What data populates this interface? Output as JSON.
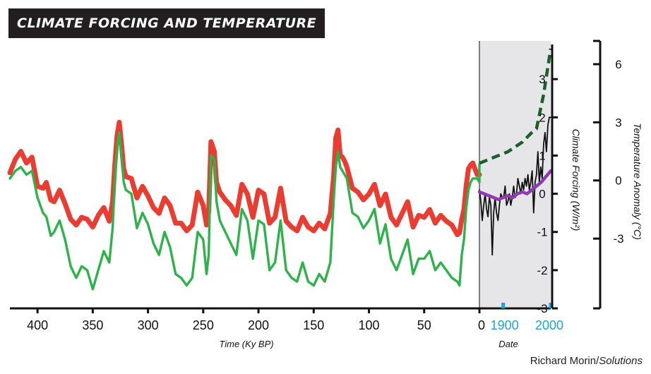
{
  "title": "CLIMATE FORCING AND TEMPERATURE",
  "credit": {
    "name": "Richard Morin/",
    "publication": "Solutions"
  },
  "colors": {
    "paleo_temperature": "#e8281c",
    "paleo_forcing": "#2db34a",
    "projection": "#1c5e2c",
    "instrumental_temperature": "#111111",
    "instrumental_forcing": "#8e3ab3",
    "date_ticks": "#1aa3e0",
    "modern_panel": "#e6e6e8"
  },
  "chart_data": [
    {
      "type": "line",
      "panel": "paleoclimate",
      "xlabel": "Time (Ky BP)",
      "xlim": [
        425,
        0
      ],
      "x_reversed": true,
      "x_ticks": [
        400,
        350,
        300,
        250,
        200,
        150,
        100,
        50,
        0
      ],
      "series": [
        {
          "kind": "temperature",
          "color_key": "paleo_temperature",
          "axis": "temperature",
          "x": [
            425,
            420,
            415,
            410,
            405,
            400,
            395,
            392,
            388,
            385,
            380,
            375,
            370,
            365,
            360,
            355,
            350,
            345,
            340,
            335,
            332,
            330,
            328,
            326,
            324,
            322,
            320,
            315,
            310,
            305,
            300,
            295,
            290,
            285,
            280,
            275,
            270,
            265,
            260,
            255,
            250,
            247,
            245,
            243,
            240,
            238,
            235,
            230,
            225,
            220,
            215,
            210,
            205,
            200,
            195,
            190,
            185,
            180,
            175,
            170,
            165,
            160,
            155,
            150,
            145,
            140,
            135,
            132,
            130,
            128,
            126,
            124,
            122,
            120,
            115,
            110,
            105,
            100,
            95,
            90,
            85,
            80,
            75,
            70,
            65,
            60,
            55,
            50,
            45,
            40,
            35,
            30,
            25,
            20,
            18,
            16,
            14,
            12,
            10,
            8,
            6,
            4,
            2,
            0
          ],
          "values": [
            0.4,
            1.1,
            1.5,
            0.9,
            1.2,
            -0.3,
            -0.4,
            -0.1,
            -1.0,
            -1.1,
            -0.5,
            -1.2,
            -2.0,
            -2.3,
            -1.9,
            -2.0,
            -2.4,
            -1.8,
            -1.4,
            -2.1,
            -1.1,
            0.8,
            2.3,
            3.0,
            1.9,
            0.6,
            0.2,
            0.1,
            -0.9,
            -0.3,
            -0.8,
            -1.4,
            -1.7,
            -0.9,
            -1.3,
            -2.2,
            -2.2,
            -2.6,
            -2.3,
            -0.6,
            -1.3,
            -2.3,
            -1.6,
            2.0,
            1.5,
            -0.1,
            -0.6,
            -1.0,
            -1.3,
            -1.8,
            -0.2,
            -0.7,
            -1.9,
            -0.5,
            -0.7,
            -2.2,
            -1.9,
            -0.4,
            -2.1,
            -2.4,
            -2.6,
            -1.9,
            -2.4,
            -2.6,
            -2.2,
            -2.5,
            -1.7,
            0.2,
            2.2,
            2.6,
            1.3,
            1.2,
            1.0,
            0.7,
            -0.4,
            -0.6,
            -1.0,
            -0.7,
            -0.2,
            -1.3,
            -0.7,
            -1.9,
            -2.3,
            -1.7,
            -1.1,
            -2.4,
            -1.8,
            -1.9,
            -1.5,
            -2.2,
            -1.8,
            -2.1,
            -2.3,
            -2.8,
            -2.7,
            -2.0,
            -1.5,
            -0.3,
            0.6,
            0.8,
            0.9,
            0.6,
            0.3,
            0.3
          ]
        },
        {
          "kind": "forcing",
          "color_key": "paleo_forcing",
          "axis": "forcing",
          "x": [
            425,
            420,
            415,
            410,
            405,
            400,
            395,
            392,
            388,
            385,
            380,
            375,
            370,
            365,
            360,
            355,
            350,
            345,
            340,
            335,
            332,
            330,
            328,
            326,
            324,
            322,
            320,
            315,
            310,
            305,
            300,
            295,
            290,
            285,
            280,
            275,
            270,
            265,
            260,
            255,
            250,
            247,
            245,
            243,
            240,
            238,
            235,
            230,
            225,
            220,
            215,
            210,
            205,
            200,
            195,
            190,
            185,
            180,
            175,
            170,
            165,
            160,
            155,
            150,
            145,
            140,
            135,
            132,
            130,
            128,
            126,
            124,
            122,
            120,
            115,
            110,
            105,
            100,
            95,
            90,
            85,
            80,
            75,
            70,
            65,
            60,
            55,
            50,
            45,
            40,
            35,
            30,
            25,
            20,
            18,
            16,
            14,
            12,
            10,
            8,
            6,
            4,
            2,
            0
          ],
          "values": [
            0.4,
            0.6,
            0.7,
            0.5,
            0.6,
            -0.1,
            -0.5,
            -0.6,
            -1.1,
            -1.0,
            -0.7,
            -1.2,
            -1.9,
            -2.2,
            -1.9,
            -2.0,
            -2.5,
            -2.0,
            -1.5,
            -1.8,
            -0.9,
            0.3,
            1.2,
            1.6,
            1.0,
            0.3,
            0.1,
            0.0,
            -0.9,
            -0.5,
            -0.8,
            -1.3,
            -1.6,
            -1.0,
            -1.4,
            -2.1,
            -2.2,
            -2.4,
            -2.2,
            -1.0,
            -1.2,
            -2.1,
            -1.6,
            1.0,
            0.9,
            -0.2,
            -0.7,
            -1.0,
            -1.3,
            -1.6,
            -0.4,
            -0.7,
            -1.7,
            -0.7,
            -0.8,
            -2.0,
            -1.8,
            -0.7,
            -2.0,
            -2.2,
            -2.3,
            -1.8,
            -2.3,
            -2.4,
            -2.1,
            -2.3,
            -1.8,
            -0.2,
            0.7,
            1.1,
            0.7,
            0.6,
            0.5,
            0.4,
            -0.5,
            -0.6,
            -0.9,
            -0.7,
            -0.4,
            -1.3,
            -0.8,
            -1.7,
            -2.0,
            -1.6,
            -1.2,
            -2.1,
            -1.7,
            -1.7,
            -1.5,
            -2.0,
            -1.8,
            -2.0,
            -2.2,
            -2.3,
            -2.4,
            -1.6,
            -1.2,
            -0.4,
            0.1,
            0.3,
            0.4,
            0.4,
            0.4,
            0.3
          ]
        }
      ]
    },
    {
      "type": "line",
      "panel": "modern",
      "xlabel": "Date",
      "xlim": [
        1850,
        2000
      ],
      "x_ticks": [
        1900,
        2000
      ],
      "series": [
        {
          "kind": "projection",
          "color_key": "projection",
          "axis": "forcing",
          "dashed": true,
          "x": [
            1850,
            1880,
            1910,
            1940,
            1960,
            1970,
            1985,
            2000
          ],
          "values": [
            0.8,
            0.95,
            1.1,
            1.35,
            1.6,
            1.7,
            2.6,
            3.8
          ]
        },
        {
          "kind": "temperature",
          "color_key": "instrumental_temperature",
          "axis": "forcing",
          "x": [
            1850,
            1853,
            1856,
            1859,
            1862,
            1865,
            1868,
            1871,
            1874,
            1877,
            1880,
            1883,
            1886,
            1889,
            1892,
            1895,
            1898,
            1901,
            1904,
            1907,
            1910,
            1913,
            1916,
            1919,
            1922,
            1925,
            1928,
            1931,
            1934,
            1937,
            1940,
            1943,
            1946,
            1949,
            1952,
            1955,
            1958,
            1961,
            1964,
            1967,
            1970,
            1973,
            1976,
            1979,
            1982,
            1985,
            1988,
            1991,
            1994,
            1997,
            2000
          ],
          "values": [
            0.1,
            -0.2,
            -0.7,
            -0.3,
            0.0,
            -0.4,
            -0.6,
            -0.1,
            -0.3,
            -1.6,
            -0.5,
            -0.1,
            -0.5,
            -0.7,
            -0.3,
            0.0,
            -0.1,
            -0.1,
            0.2,
            -0.3,
            -0.2,
            0.0,
            -0.3,
            -0.1,
            0.2,
            -0.1,
            0.0,
            0.4,
            0.2,
            0.0,
            0.3,
            0.1,
            0.4,
            0.2,
            0.5,
            0.1,
            0.3,
            0.6,
            -0.5,
            0.3,
            0.5,
            1.1,
            0.3,
            0.7,
            0.4,
            1.3,
            1.6,
            1.1,
            1.8,
            2.0,
            2.0
          ]
        },
        {
          "kind": "forcing",
          "color_key": "instrumental_forcing",
          "axis": "forcing",
          "x": [
            1850,
            1860,
            1870,
            1880,
            1890,
            1900,
            1910,
            1920,
            1930,
            1940,
            1950,
            1960,
            1970,
            1980,
            1990,
            2000
          ],
          "values": [
            0.05,
            0.0,
            -0.05,
            -0.1,
            -0.15,
            -0.1,
            -0.05,
            -0.1,
            0.0,
            0.05,
            0.0,
            0.1,
            0.2,
            0.3,
            0.45,
            0.6
          ]
        }
      ]
    }
  ],
  "axes": {
    "forcing": {
      "label": "Climate Forcing (W/m²)",
      "ylim": [
        -3,
        4
      ],
      "ticks": [
        3,
        2,
        1,
        0,
        -1,
        -2,
        -3
      ],
      "tick_labels": [
        "3",
        "2",
        "1",
        "0",
        "-1",
        "-2",
        "-3"
      ]
    },
    "temperature": {
      "label": "Temperature Anomaly (°C)",
      "ylim": [
        -6.6,
        7.2
      ],
      "ticks": [
        6,
        3,
        0,
        -3
      ],
      "tick_labels": [
        "6",
        "3",
        "0",
        "-3"
      ]
    }
  },
  "x_tick_labels": {
    "paleo": [
      "400",
      "350",
      "300",
      "250",
      "200",
      "150",
      "100",
      "50",
      "0"
    ],
    "modern": [
      "1900",
      "2000"
    ]
  }
}
